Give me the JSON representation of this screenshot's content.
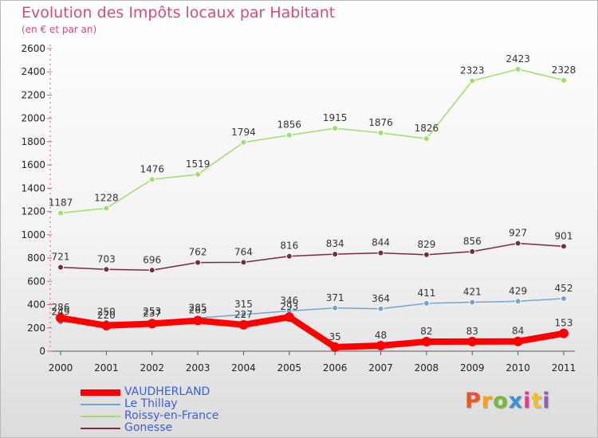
{
  "title": "Evolution des Impôts locaux par Habitant",
  "subtitle": "(en € et par an)",
  "logo": {
    "text": "Proxiti",
    "colors": [
      "#e8572c",
      "#f2a21b",
      "#7ab83b",
      "#3a8fd9",
      "#e53b86",
      "#f2c21b",
      "#9b59b6"
    ]
  },
  "chart_data": {
    "type": "line",
    "x": [
      "2000",
      "2001",
      "2002",
      "2003",
      "2004",
      "2005",
      "2006",
      "2007",
      "2008",
      "2009",
      "2010",
      "2011"
    ],
    "ylim": [
      0,
      2600
    ],
    "yticks": [
      0,
      200,
      400,
      600,
      800,
      1000,
      1200,
      1400,
      1600,
      1800,
      2000,
      2200,
      2400,
      2600
    ],
    "grid": false,
    "legend_position": "bottom-left",
    "series": [
      {
        "name": "VAUDHERLAND",
        "color": "#ff0000",
        "values": [
          286,
          220,
          237,
          263,
          227,
          293,
          35,
          48,
          82,
          83,
          84,
          153
        ]
      },
      {
        "name": "Le Thillay",
        "color": "#6fa5d6",
        "values": [
          249,
          250,
          253,
          285,
          315,
          346,
          371,
          364,
          411,
          421,
          429,
          452
        ]
      },
      {
        "name": "Roissy-en-France",
        "color": "#9be06a",
        "values": [
          1187,
          1228,
          1476,
          1519,
          1794,
          1856,
          1915,
          1876,
          1826,
          2323,
          2423,
          2328
        ]
      },
      {
        "name": "Gonesse",
        "color": "#7a2b36",
        "values": [
          721,
          703,
          696,
          762,
          764,
          816,
          834,
          844,
          829,
          856,
          927,
          901
        ]
      }
    ]
  }
}
